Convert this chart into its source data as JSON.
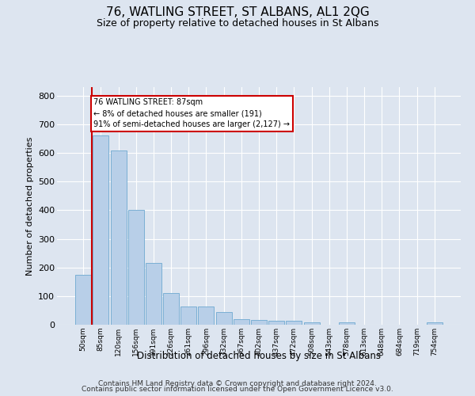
{
  "title": "76, WATLING STREET, ST ALBANS, AL1 2QG",
  "subtitle": "Size of property relative to detached houses in St Albans",
  "xlabel": "Distribution of detached houses by size in St Albans",
  "ylabel": "Number of detached properties",
  "footnote1": "Contains HM Land Registry data © Crown copyright and database right 2024.",
  "footnote2": "Contains public sector information licensed under the Open Government Licence v3.0.",
  "bar_labels": [
    "50sqm",
    "85sqm",
    "120sqm",
    "156sqm",
    "191sqm",
    "226sqm",
    "261sqm",
    "296sqm",
    "332sqm",
    "367sqm",
    "402sqm",
    "437sqm",
    "472sqm",
    "508sqm",
    "543sqm",
    "578sqm",
    "613sqm",
    "648sqm",
    "684sqm",
    "719sqm",
    "754sqm"
  ],
  "bar_values": [
    175,
    660,
    610,
    400,
    215,
    110,
    65,
    65,
    45,
    18,
    17,
    15,
    14,
    7,
    0,
    9,
    0,
    0,
    0,
    0,
    7
  ],
  "bar_color": "#b8cfe8",
  "bar_edge_color": "#7aafd4",
  "annotation_text": "76 WATLING STREET: 87sqm\n← 8% of detached houses are smaller (191)\n91% of semi-detached houses are larger (2,127) →",
  "annotation_box_color": "#ffffff",
  "annotation_box_edge_color": "#cc0000",
  "property_line_color": "#cc0000",
  "ylim": [
    0,
    830
  ],
  "yticks": [
    0,
    100,
    200,
    300,
    400,
    500,
    600,
    700,
    800
  ],
  "background_color": "#dde5f0",
  "grid_color": "#ffffff",
  "title_fontsize": 11,
  "subtitle_fontsize": 9,
  "footnote_fontsize": 6.5
}
